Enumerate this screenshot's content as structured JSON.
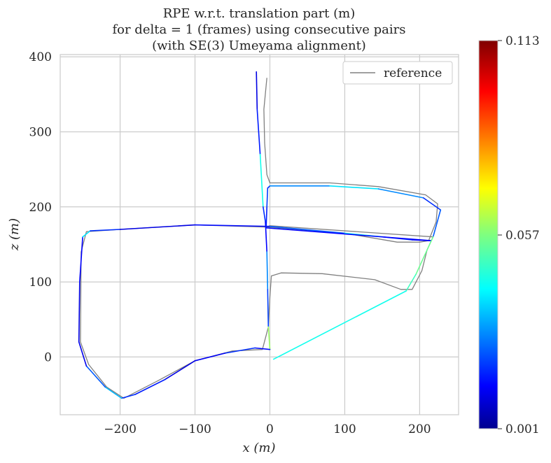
{
  "chart_data": {
    "type": "line",
    "title": [
      "RPE w.r.t. translation part (m)",
      "for delta = 1 (frames) using consecutive pairs",
      "(with SE(3) Umeyama alignment)"
    ],
    "xlabel": "x (m)",
    "ylabel": "z (m)",
    "xlim": [
      -280,
      252
    ],
    "ylim": [
      -77,
      403
    ],
    "xticks": [
      -200,
      -100,
      0,
      100,
      200
    ],
    "xtick_labels": [
      "−200",
      "−100",
      "0",
      "100",
      "200"
    ],
    "yticks": [
      0,
      100,
      200,
      300,
      400
    ],
    "ytick_labels": [
      "0",
      "100",
      "200",
      "300",
      "400"
    ],
    "grid": true,
    "legend": {
      "position": "top-right",
      "entries": [
        "reference"
      ]
    },
    "colorbar": {
      "colormap": "jet",
      "min": 0.001,
      "max": 0.113,
      "tick_labels": [
        "0.001",
        "0.057",
        "0.113"
      ]
    },
    "series": [
      {
        "name": "reference",
        "color": "#808080",
        "points": [
          [
            -4,
            372
          ],
          [
            -8,
            330
          ],
          [
            -7,
            285
          ],
          [
            -4,
            243
          ],
          [
            0,
            232
          ],
          [
            80,
            232
          ],
          [
            145,
            227
          ],
          [
            208,
            216
          ],
          [
            224,
            204
          ],
          [
            222,
            180
          ],
          [
            212,
            155
          ],
          [
            200,
            153
          ],
          [
            170,
            153
          ],
          [
            100,
            165
          ],
          [
            0,
            173
          ],
          [
            -100,
            176
          ],
          [
            -200,
            170
          ],
          [
            -245,
            167
          ],
          [
            -252,
            140
          ],
          [
            -253,
            20
          ],
          [
            -242,
            -10
          ],
          [
            -218,
            -40
          ],
          [
            -195,
            -55
          ],
          [
            -150,
            -32
          ],
          [
            -100,
            -5
          ],
          [
            -50,
            8
          ],
          [
            -10,
            10
          ],
          [
            -2,
            40
          ],
          [
            0,
            80
          ],
          [
            2,
            108
          ],
          [
            15,
            112
          ],
          [
            70,
            111
          ],
          [
            140,
            103
          ],
          [
            175,
            90
          ],
          [
            190,
            90
          ],
          [
            203,
            115
          ],
          [
            210,
            143
          ],
          [
            218,
            160
          ],
          [
            -1,
            175
          ]
        ]
      },
      {
        "name": "",
        "colormap_values": [
          0.012,
          0.018,
          0.045,
          0.02,
          0.015,
          0.03,
          0.022,
          0.06,
          0.016,
          0.02,
          0.014,
          0.012,
          0.018,
          0.02,
          0.035,
          0.025,
          0.013,
          0.012,
          0.015,
          0.04,
          0.02,
          0.012,
          0.016,
          0.025,
          0.045,
          0.02,
          0.014,
          0.015,
          0.018,
          0.022,
          0.02,
          0.03,
          0.04,
          0.03,
          0.02,
          0.025,
          0.055,
          0.05,
          0.045,
          0.02
        ],
        "points": [
          [
            -18,
            380
          ],
          [
            -17,
            330
          ],
          [
            -13,
            270
          ],
          [
            -9,
            200
          ],
          [
            -6,
            180
          ],
          [
            -4,
            140
          ],
          [
            -3,
            90
          ],
          [
            -2,
            40
          ],
          [
            0,
            10
          ],
          [
            -20,
            12
          ],
          [
            -60,
            5
          ],
          [
            -100,
            -5
          ],
          [
            -140,
            -30
          ],
          [
            -180,
            -50
          ],
          [
            -198,
            -55
          ],
          [
            -220,
            -40
          ],
          [
            -245,
            -12
          ],
          [
            -255,
            20
          ],
          [
            -254,
            100
          ],
          [
            -250,
            160
          ],
          [
            -240,
            168
          ],
          [
            -200,
            170
          ],
          [
            -100,
            176
          ],
          [
            0,
            174
          ],
          [
            100,
            165
          ],
          [
            150,
            160
          ],
          [
            190,
            156
          ],
          [
            215,
            155
          ],
          [
            -5,
            172
          ],
          [
            -4,
            200
          ],
          [
            -3,
            225
          ],
          [
            0,
            228
          ],
          [
            80,
            228
          ],
          [
            145,
            224
          ],
          [
            205,
            212
          ],
          [
            228,
            196
          ],
          [
            218,
            160
          ],
          [
            195,
            110
          ],
          [
            182,
            88
          ],
          [
            5,
            -3
          ]
        ]
      }
    ]
  }
}
